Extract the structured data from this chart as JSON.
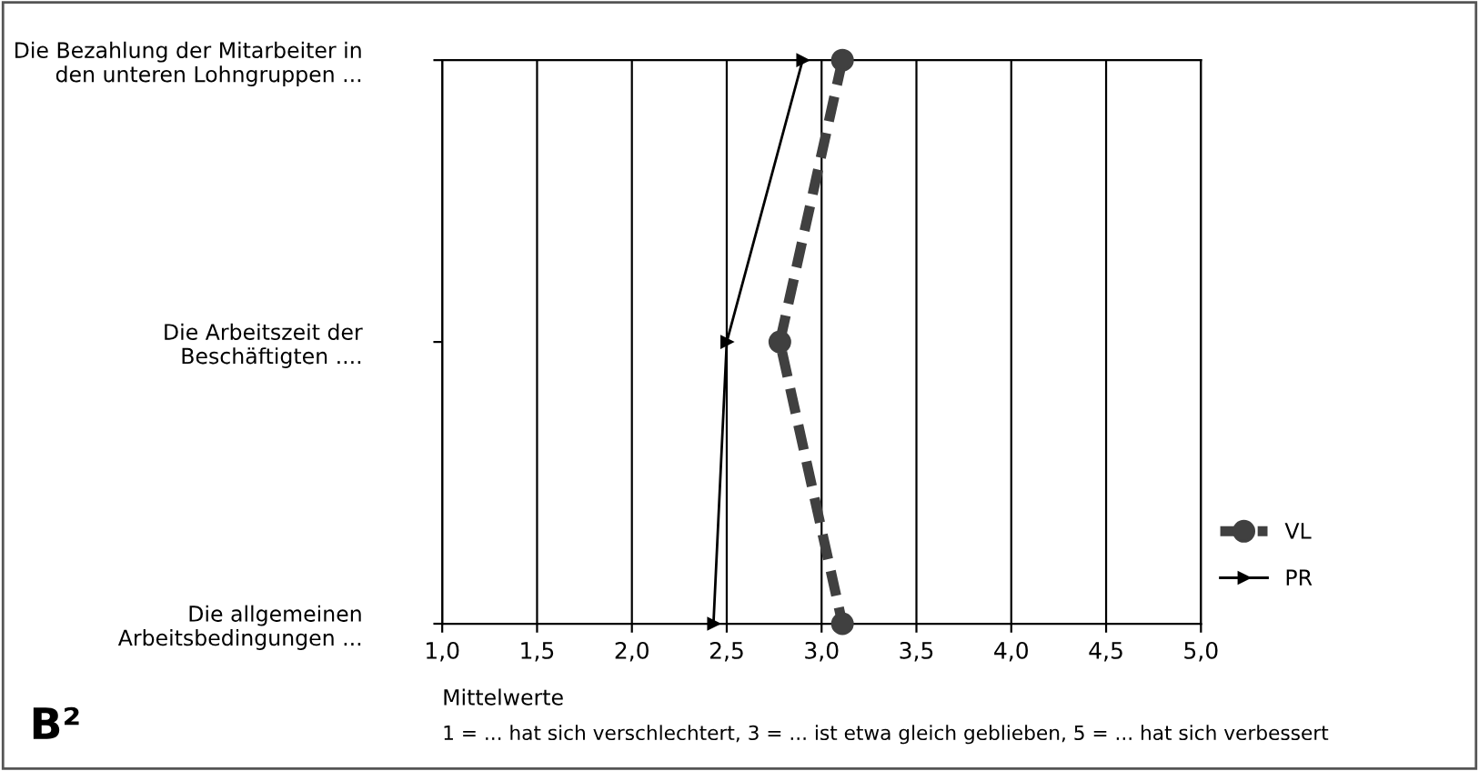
{
  "chart_data": {
    "type": "line",
    "orientation": "horizontal",
    "categories": [
      "Die Bezahlung der Mitarbeiter in\nden unteren Lohngruppen ...",
      "Die Arbeitszeit der\nBeschäftigten ....",
      "Die allgemeinen\nArbeitsbedingungen ..."
    ],
    "series": [
      {
        "name": "VL",
        "color": "#404040",
        "values": [
          3.11,
          2.78,
          3.11
        ],
        "marker": "circle",
        "line_style": "dashed"
      },
      {
        "name": "PR",
        "color": "#000000",
        "values": [
          2.9,
          2.5,
          2.43
        ],
        "marker": "triangle",
        "line_style": "solid"
      }
    ],
    "xlim": [
      1,
      5
    ],
    "xticks": [
      {
        "value": 1,
        "label": "1,0"
      },
      {
        "value": 1.5,
        "label": "1,5"
      },
      {
        "value": 2,
        "label": "2,0"
      },
      {
        "value": 2.5,
        "label": "2,5"
      },
      {
        "value": 3,
        "label": "3,0"
      },
      {
        "value": 3.5,
        "label": "3,5"
      },
      {
        "value": 4,
        "label": "4,0"
      },
      {
        "value": 4.5,
        "label": "4,5"
      },
      {
        "value": 5,
        "label": "5,0"
      }
    ],
    "xlabel": "Mittelwerte",
    "grid": "x",
    "legend": "right",
    "annotations": [
      "1 = ... hat sich verschlechtert, 3 = ... ist etwa gleich geblieben, 5 = ... hat sich verbessert",
      "B²"
    ]
  }
}
